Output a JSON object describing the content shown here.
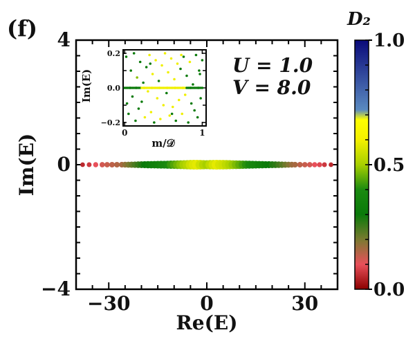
{
  "panel_label": "(f)",
  "chart_data": {
    "type": "scatter",
    "title": "",
    "xlabel": "Re(E)",
    "ylabel": "Im(E)",
    "xlim": [
      -40,
      40
    ],
    "ylim": [
      -4,
      4
    ],
    "xticks": [
      -30,
      0,
      30
    ],
    "xtick_labels": [
      "−30",
      "0",
      "30"
    ],
    "yticks": [
      -4,
      0,
      4
    ],
    "ytick_labels": [
      "−4",
      "0",
      "4"
    ],
    "color_by": "D2",
    "annotations": [
      "U = 1.0",
      "V = 8.0"
    ],
    "points_note": "Eigenvalues lie on the real axis (Im(E)=0) over Re(E) from about -38 to 38; D2 is about 0.5 near the centre and falls towards 0.1 at the band edges.",
    "points": [
      {
        "x": -38.0,
        "y": 0,
        "d2": 0.05
      },
      {
        "x": -36.0,
        "y": 0,
        "d2": 0.07
      },
      {
        "x": -34.0,
        "y": 0,
        "d2": 0.1
      },
      {
        "x": -32.0,
        "y": 0,
        "d2": 0.12
      },
      {
        "x": -30.5,
        "y": 0,
        "d2": 0.13
      },
      {
        "x": -29.0,
        "y": 0,
        "d2": 0.14
      },
      {
        "x": -27.5,
        "y": 0,
        "d2": 0.15
      },
      {
        "x": -26.0,
        "y": 0,
        "d2": 0.16
      },
      {
        "x": -25.0,
        "y": 0,
        "d2": 0.18
      },
      {
        "x": -24.0,
        "y": 0,
        "d2": 0.2
      },
      {
        "x": -23.0,
        "y": 0,
        "d2": 0.22
      },
      {
        "x": -22.0,
        "y": 0,
        "d2": 0.24
      },
      {
        "x": -21.0,
        "y": 0,
        "d2": 0.26
      },
      {
        "x": -20.0,
        "y": 0,
        "d2": 0.28
      },
      {
        "x": -19.0,
        "y": 0,
        "d2": 0.3
      },
      {
        "x": -18.0,
        "y": 0,
        "d2": 0.32
      },
      {
        "x": -17.0,
        "y": 0,
        "d2": 0.33
      },
      {
        "x": -16.0,
        "y": 0,
        "d2": 0.34
      },
      {
        "x": -15.0,
        "y": 0,
        "d2": 0.35
      },
      {
        "x": -14.0,
        "y": 0,
        "d2": 0.37
      },
      {
        "x": -13.0,
        "y": 0,
        "d2": 0.38
      },
      {
        "x": -12.0,
        "y": 0,
        "d2": 0.4
      },
      {
        "x": -11.0,
        "y": 0,
        "d2": 0.42
      },
      {
        "x": -10.0,
        "y": 0,
        "d2": 0.44
      },
      {
        "x": -9.0,
        "y": 0,
        "d2": 0.46
      },
      {
        "x": -8.0,
        "y": 0,
        "d2": 0.48
      },
      {
        "x": -7.0,
        "y": 0,
        "d2": 0.5
      },
      {
        "x": -6.0,
        "y": 0,
        "d2": 0.52
      },
      {
        "x": -5.0,
        "y": 0,
        "d2": 0.55
      },
      {
        "x": -4.0,
        "y": 0,
        "d2": 0.57
      },
      {
        "x": -3.0,
        "y": 0,
        "d2": 0.58
      },
      {
        "x": -2.0,
        "y": 0,
        "d2": 0.55
      },
      {
        "x": -1.0,
        "y": 0,
        "d2": 0.52
      },
      {
        "x": 0.0,
        "y": 0,
        "d2": 0.5
      },
      {
        "x": 1.0,
        "y": 0,
        "d2": 0.53
      },
      {
        "x": 2.0,
        "y": 0,
        "d2": 0.56
      },
      {
        "x": 3.0,
        "y": 0,
        "d2": 0.58
      },
      {
        "x": 4.0,
        "y": 0,
        "d2": 0.56
      },
      {
        "x": 5.0,
        "y": 0,
        "d2": 0.55
      },
      {
        "x": 6.0,
        "y": 0,
        "d2": 0.53
      },
      {
        "x": 7.0,
        "y": 0,
        "d2": 0.51
      },
      {
        "x": 8.0,
        "y": 0,
        "d2": 0.49
      },
      {
        "x": 9.0,
        "y": 0,
        "d2": 0.47
      },
      {
        "x": 10.0,
        "y": 0,
        "d2": 0.45
      },
      {
        "x": 11.0,
        "y": 0,
        "d2": 0.43
      },
      {
        "x": 12.0,
        "y": 0,
        "d2": 0.41
      },
      {
        "x": 13.0,
        "y": 0,
        "d2": 0.39
      },
      {
        "x": 14.0,
        "y": 0,
        "d2": 0.37
      },
      {
        "x": 15.0,
        "y": 0,
        "d2": 0.36
      },
      {
        "x": 16.0,
        "y": 0,
        "d2": 0.34
      },
      {
        "x": 17.0,
        "y": 0,
        "d2": 0.33
      },
      {
        "x": 18.0,
        "y": 0,
        "d2": 0.31
      },
      {
        "x": 19.0,
        "y": 0,
        "d2": 0.3
      },
      {
        "x": 20.0,
        "y": 0,
        "d2": 0.28
      },
      {
        "x": 21.0,
        "y": 0,
        "d2": 0.27
      },
      {
        "x": 22.0,
        "y": 0,
        "d2": 0.25
      },
      {
        "x": 23.0,
        "y": 0,
        "d2": 0.23
      },
      {
        "x": 24.0,
        "y": 0,
        "d2": 0.21
      },
      {
        "x": 25.0,
        "y": 0,
        "d2": 0.19
      },
      {
        "x": 26.0,
        "y": 0,
        "d2": 0.17
      },
      {
        "x": 27.0,
        "y": 0,
        "d2": 0.16
      },
      {
        "x": 28.5,
        "y": 0,
        "d2": 0.14
      },
      {
        "x": 30.0,
        "y": 0,
        "d2": 0.13
      },
      {
        "x": 31.5,
        "y": 0,
        "d2": 0.12
      },
      {
        "x": 33.0,
        "y": 0,
        "d2": 0.1
      },
      {
        "x": 34.5,
        "y": 0,
        "d2": 0.09
      },
      {
        "x": 36.0,
        "y": 0,
        "d2": 0.07
      },
      {
        "x": 38.0,
        "y": 0,
        "d2": 0.05
      }
    ],
    "colorbar": {
      "label": "D₂",
      "ticks": [
        0.0,
        0.5,
        1.0
      ],
      "tick_labels": [
        "0.0",
        "0.5",
        "1.0"
      ],
      "stops": [
        {
          "v": 0.0,
          "color": "#8b0000"
        },
        {
          "v": 0.1,
          "color": "#e8505a"
        },
        {
          "v": 0.2,
          "color": "#7a7a30"
        },
        {
          "v": 0.3,
          "color": "#0a7a0a"
        },
        {
          "v": 0.4,
          "color": "#1b8a10"
        },
        {
          "v": 0.5,
          "color": "#a8d000"
        },
        {
          "v": 0.6,
          "color": "#f4f000"
        },
        {
          "v": 0.68,
          "color": "#ffff00"
        },
        {
          "v": 0.72,
          "color": "#5a8ac0"
        },
        {
          "v": 1.0,
          "color": "#0a0a7a"
        }
      ]
    },
    "inset": {
      "type": "scatter",
      "xlabel": "m/𝒟",
      "ylabel": "Im(E)",
      "xlim": [
        -0.02,
        1.05
      ],
      "ylim": [
        -0.22,
        0.22
      ],
      "xticks": [
        0,
        1
      ],
      "xtick_labels": [
        "0",
        "1"
      ],
      "yticks": [
        -0.2,
        0.0,
        0.2
      ],
      "ytick_labels": [
        "−0.2",
        "0.0",
        "0.2"
      ],
      "points": [
        [
          0.02,
          0.18,
          "#0a7a0a"
        ],
        [
          0.05,
          -0.15,
          "#0a7a0a"
        ],
        [
          0.08,
          0.1,
          "#0a7a0a"
        ],
        [
          0.1,
          -0.05,
          "#0a7a0a"
        ],
        [
          0.12,
          0.2,
          "#0a7a0a"
        ],
        [
          0.14,
          -0.19,
          "#0a7a0a"
        ],
        [
          0.16,
          0.06,
          "#8ac000"
        ],
        [
          0.18,
          -0.12,
          "#0a7a0a"
        ],
        [
          0.2,
          0.15,
          "#0a7a0a"
        ],
        [
          0.22,
          -0.08,
          "#0a7a0a"
        ],
        [
          0.24,
          0.03,
          "#0a7a0a"
        ],
        [
          0.26,
          -0.17,
          "#f0f000"
        ],
        [
          0.28,
          0.12,
          "#0a7a0a"
        ],
        [
          0.3,
          -0.02,
          "#f0f000"
        ],
        [
          0.32,
          0.19,
          "#f0f000"
        ],
        [
          0.34,
          -0.14,
          "#f0f000"
        ],
        [
          0.36,
          0.08,
          "#f0f000"
        ],
        [
          0.38,
          -0.2,
          "#0a7a0a"
        ],
        [
          0.4,
          0.16,
          "#f0f000"
        ],
        [
          0.42,
          -0.06,
          "#f0f000"
        ],
        [
          0.44,
          0.04,
          "#0a7a0a"
        ],
        [
          0.46,
          -0.18,
          "#f0f000"
        ],
        [
          0.48,
          0.13,
          "#f0f000"
        ],
        [
          0.5,
          -0.1,
          "#f0f000"
        ],
        [
          0.52,
          0.2,
          "#f0f000"
        ],
        [
          0.54,
          -0.03,
          "#0a7a0a"
        ],
        [
          0.56,
          0.09,
          "#f0f000"
        ],
        [
          0.58,
          -0.16,
          "#f0f000"
        ],
        [
          0.6,
          0.17,
          "#f0f000"
        ],
        [
          0.62,
          -0.11,
          "#f0f000"
        ],
        [
          0.64,
          0.05,
          "#f0f000"
        ],
        [
          0.66,
          -0.19,
          "#0a7a0a"
        ],
        [
          0.68,
          0.14,
          "#f0f000"
        ],
        [
          0.7,
          -0.07,
          "#f0f000"
        ],
        [
          0.72,
          0.11,
          "#0a7a0a"
        ],
        [
          0.74,
          -0.15,
          "#f0f000"
        ],
        [
          0.76,
          0.18,
          "#0a7a0a"
        ],
        [
          0.78,
          -0.04,
          "#f0f000"
        ],
        [
          0.8,
          0.07,
          "#0a7a0a"
        ],
        [
          0.82,
          -0.2,
          "#0a7a0a"
        ],
        [
          0.84,
          0.15,
          "#f0f000"
        ],
        [
          0.86,
          -0.09,
          "#0a7a0a"
        ],
        [
          0.88,
          0.02,
          "#0a7a0a"
        ],
        [
          0.9,
          -0.13,
          "#0a7a0a"
        ],
        [
          0.92,
          0.19,
          "#0a7a0a"
        ],
        [
          0.94,
          -0.17,
          "#0a7a0a"
        ],
        [
          0.96,
          0.1,
          "#0a7a0a"
        ],
        [
          0.98,
          -0.06,
          "#0a7a0a"
        ],
        [
          1.0,
          0.16,
          "#0a7a0a"
        ],
        [
          0.07,
          0.0,
          "#0a7a0a"
        ],
        [
          0.25,
          0.0,
          "#f0f000"
        ],
        [
          0.35,
          0.0,
          "#f0f000"
        ],
        [
          0.45,
          0.0,
          "#f0f000"
        ],
        [
          0.55,
          0.0,
          "#f0f000"
        ],
        [
          0.65,
          0.0,
          "#f0f000"
        ],
        [
          0.75,
          0.0,
          "#f0f000"
        ],
        [
          0.85,
          0.0,
          "#0a7a0a"
        ],
        [
          0.95,
          0.0,
          "#0a7a0a"
        ],
        [
          0.15,
          0.0,
          "#0a7a0a"
        ],
        [
          0.03,
          -0.09,
          "#0a7a0a"
        ],
        [
          0.97,
          0.08,
          "#0a7a0a"
        ],
        [
          0.33,
          0.14,
          "#0a7a0a"
        ],
        [
          0.61,
          -0.15,
          "#0a7a0a"
        ],
        [
          0.73,
          0.19,
          "#f0f000"
        ]
      ]
    }
  }
}
